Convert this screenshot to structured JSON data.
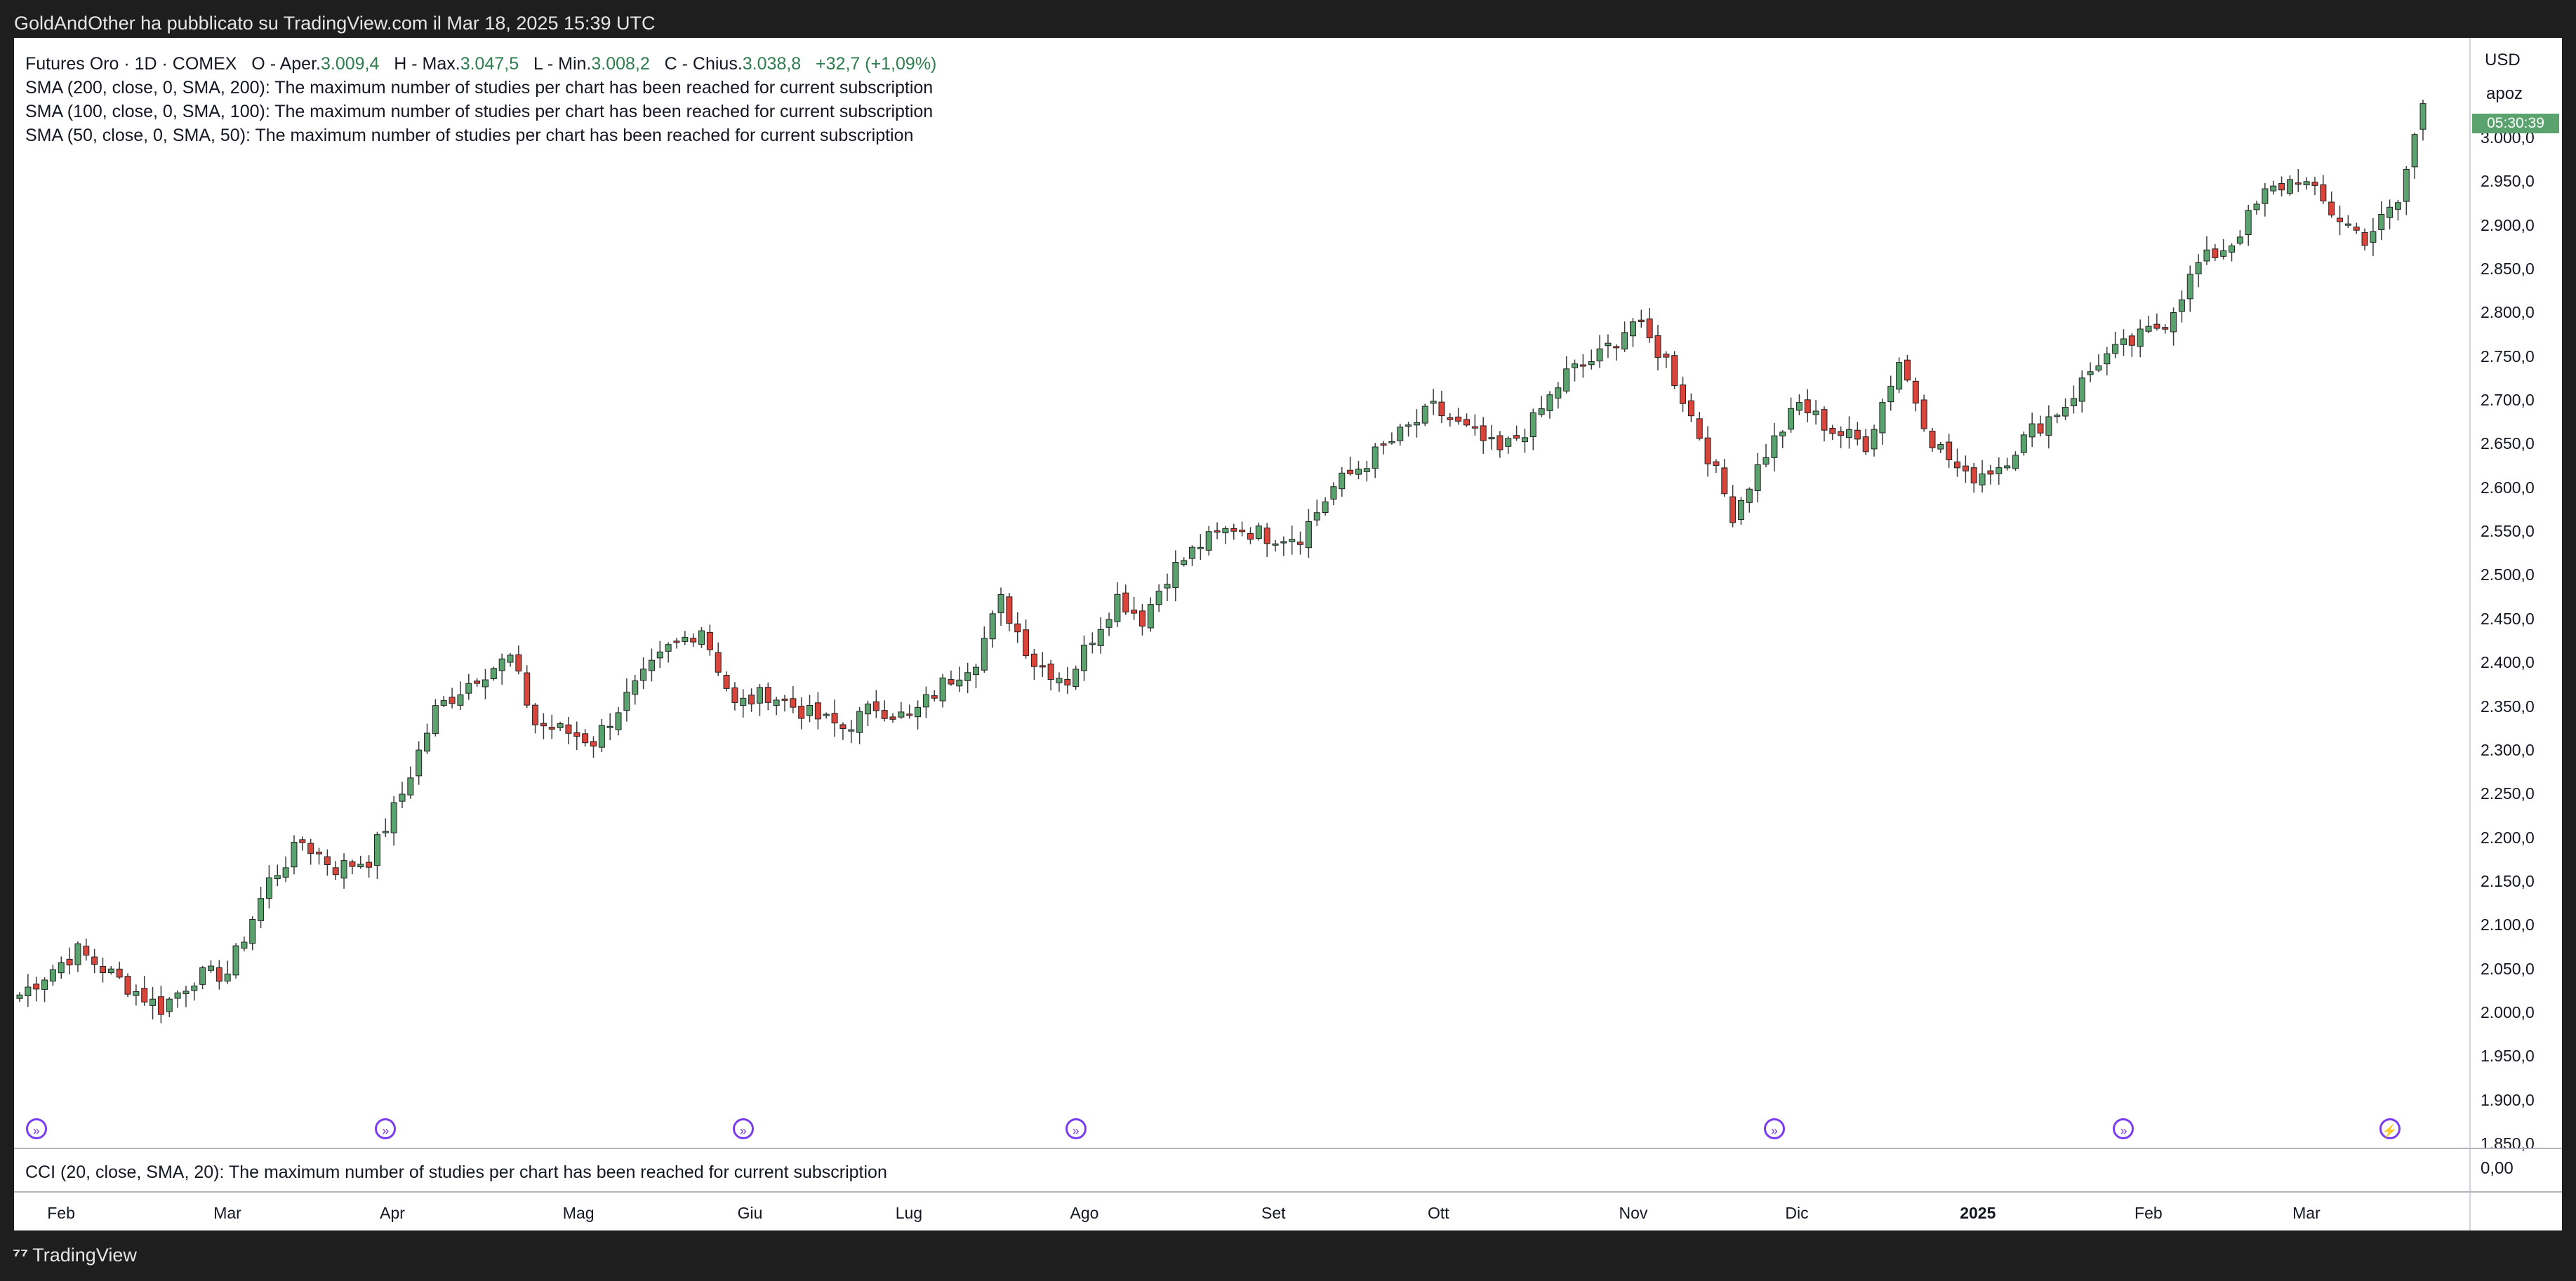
{
  "header": {
    "published": "GoldAndOther ha pubblicato su TradingView.com il Mar 18, 2025 15:39 UTC"
  },
  "legend": {
    "title": "Futures Oro · 1D · COMEX",
    "o_label": "O - Aper.",
    "o_value": "3.009,4",
    "h_label": "H - Max.",
    "h_value": "3.047,5",
    "l_label": "L - Min.",
    "l_value": "3.008,2",
    "c_label": "C - Chius.",
    "c_value": "3.038,8",
    "change": "+32,7 (+1,09%)",
    "studies": [
      "SMA (200, close, 0, SMA, 200): The maximum number of studies per chart has been reached for current subscription",
      "SMA (100, close, 0, SMA, 100): The maximum number of studies per chart has been reached for current subscription",
      "SMA (50, close, 0, SMA, 50): The maximum number of studies per chart has been reached for current subscription"
    ],
    "cci": "CCI (20, close, SMA, 20): The maximum number of studies per chart has been reached for current subscription"
  },
  "axis": {
    "currency": "USD",
    "mode": "apoz",
    "price_tag": "05:30:39",
    "cci_zero": "0,00"
  },
  "footer": {
    "brand": "TradingView"
  },
  "colors": {
    "up": "#5aa36f",
    "down": "#d9443b",
    "wick": "#3a3a3a",
    "event": "#7b3cf0"
  },
  "chart_data": {
    "type": "candlestick",
    "title": "Futures Oro · 1D · COMEX",
    "ylim": [
      1850,
      3090
    ],
    "yticks": [
      1850,
      1900,
      1950,
      2000,
      2050,
      2100,
      2150,
      2200,
      2250,
      2300,
      2350,
      2400,
      2450,
      2500,
      2550,
      2600,
      2650,
      2700,
      2750,
      2800,
      2850,
      2900,
      2950,
      3000
    ],
    "ytick_labels": [
      "1.850,0",
      "1.900,0",
      "1.950,0",
      "2.000,0",
      "2.050,0",
      "2.100,0",
      "2.150,0",
      "2.200,0",
      "2.250,0",
      "2.300,0",
      "2.350,0",
      "2.400,0",
      "2.450,0",
      "2.500,0",
      "2.550,0",
      "2.600,0",
      "2.650,0",
      "2.700,0",
      "2.750,0",
      "2.800,0",
      "2.850,0",
      "2.900,0",
      "2.950,0",
      "3.000,0"
    ],
    "x_count": 290,
    "month_labels": [
      {
        "label": "Feb",
        "bar": 5
      },
      {
        "label": "Mar",
        "bar": 25
      },
      {
        "label": "Apr",
        "bar": 45
      },
      {
        "label": "Mag",
        "bar": 67
      },
      {
        "label": "Giu",
        "bar": 88
      },
      {
        "label": "Lug",
        "bar": 107
      },
      {
        "label": "Ago",
        "bar": 128
      },
      {
        "label": "Set",
        "bar": 151
      },
      {
        "label": "Ott",
        "bar": 171
      },
      {
        "label": "Nov",
        "bar": 194
      },
      {
        "label": "Dic",
        "bar": 214
      },
      {
        "label": "2025",
        "bar": 235,
        "bold": true
      },
      {
        "label": "Feb",
        "bar": 256
      },
      {
        "label": "Mar",
        "bar": 275
      }
    ],
    "close_path": [
      [
        0,
        2020
      ],
      [
        4,
        2050
      ],
      [
        7,
        2070
      ],
      [
        13,
        2030
      ],
      [
        17,
        2005
      ],
      [
        21,
        2040
      ],
      [
        25,
        2045
      ],
      [
        30,
        2150
      ],
      [
        34,
        2195
      ],
      [
        38,
        2165
      ],
      [
        42,
        2175
      ],
      [
        46,
        2250
      ],
      [
        50,
        2345
      ],
      [
        55,
        2385
      ],
      [
        59,
        2405
      ],
      [
        62,
        2330
      ],
      [
        66,
        2320
      ],
      [
        69,
        2310
      ],
      [
        73,
        2360
      ],
      [
        78,
        2415
      ],
      [
        82,
        2440
      ],
      [
        86,
        2350
      ],
      [
        90,
        2365
      ],
      [
        95,
        2340
      ],
      [
        99,
        2325
      ],
      [
        103,
        2350
      ],
      [
        107,
        2335
      ],
      [
        111,
        2375
      ],
      [
        115,
        2405
      ],
      [
        118,
        2470
      ],
      [
        122,
        2400
      ],
      [
        126,
        2380
      ],
      [
        129,
        2430
      ],
      [
        132,
        2475
      ],
      [
        135,
        2450
      ],
      [
        138,
        2500
      ],
      [
        142,
        2535
      ],
      [
        146,
        2555
      ],
      [
        150,
        2545
      ],
      [
        154,
        2545
      ],
      [
        158,
        2600
      ],
      [
        162,
        2630
      ],
      [
        166,
        2660
      ],
      [
        170,
        2690
      ],
      [
        174,
        2665
      ],
      [
        178,
        2640
      ],
      [
        182,
        2675
      ],
      [
        186,
        2730
      ],
      [
        190,
        2750
      ],
      [
        194,
        2790
      ],
      [
        198,
        2745
      ],
      [
        202,
        2660
      ],
      [
        206,
        2570
      ],
      [
        210,
        2640
      ],
      [
        214,
        2695
      ],
      [
        218,
        2665
      ],
      [
        222,
        2650
      ],
      [
        226,
        2745
      ],
      [
        230,
        2655
      ],
      [
        234,
        2610
      ],
      [
        238,
        2625
      ],
      [
        242,
        2665
      ],
      [
        246,
        2695
      ],
      [
        250,
        2745
      ],
      [
        254,
        2765
      ],
      [
        258,
        2790
      ],
      [
        262,
        2855
      ],
      [
        266,
        2880
      ],
      [
        270,
        2935
      ],
      [
        274,
        2955
      ],
      [
        278,
        2915
      ],
      [
        282,
        2885
      ],
      [
        286,
        2925
      ],
      [
        289,
        3039
      ]
    ],
    "events_at_bar": [
      2,
      44,
      87,
      127,
      211,
      253,
      285
    ]
  }
}
